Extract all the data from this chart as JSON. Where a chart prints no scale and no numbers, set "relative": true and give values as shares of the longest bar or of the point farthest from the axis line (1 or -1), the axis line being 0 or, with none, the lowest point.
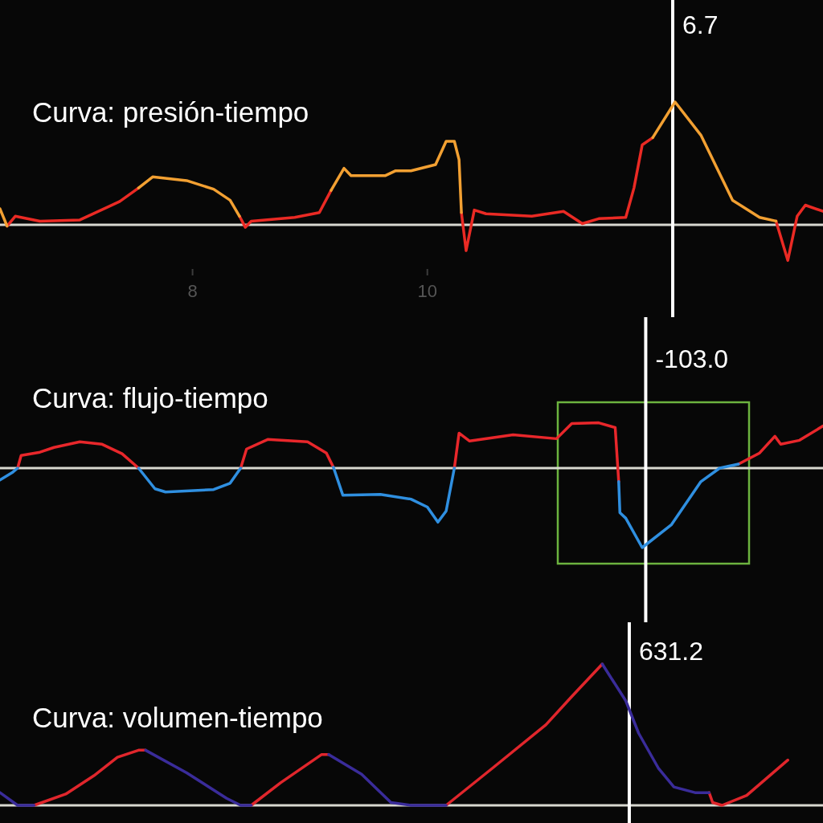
{
  "chart_data": [
    {
      "type": "line",
      "title": "Curva: presión-tiempo",
      "relative": true,
      "xlim": [
        6.36,
        13.37
      ],
      "xticks": [
        8,
        10
      ],
      "x": [
        6.36,
        6.42,
        6.49,
        6.7,
        7.04,
        7.38,
        7.54,
        7.66,
        7.95,
        8.18,
        8.32,
        8.4,
        8.45,
        8.5,
        8.87,
        9.08,
        9.18,
        9.29,
        9.35,
        9.64,
        9.73,
        9.86,
        10.07,
        10.16,
        10.23,
        10.27,
        10.29,
        10.33,
        10.4,
        10.5,
        10.89,
        11.16,
        11.32,
        11.46,
        11.69,
        11.76,
        11.83,
        11.92,
        12.11,
        12.33,
        12.6,
        12.83,
        12.97,
        13.07,
        13.15,
        13.22,
        13.37
      ],
      "series": [
        {
          "color": "#ea2a24",
          "values": [
            null,
            -0.01,
            0.07,
            0.03,
            0.04,
            0.19,
            0.3,
            null,
            null,
            null,
            null,
            0.07,
            -0.02,
            0.03,
            0.06,
            0.1,
            0.28,
            null,
            null,
            null,
            null,
            null,
            null,
            null,
            null,
            null,
            0.1,
            -0.21,
            0.12,
            0.09,
            0.07,
            0.11,
            0.01,
            0.05,
            0.06,
            0.3,
            0.65,
            0.71,
            null,
            null,
            null,
            null,
            0.03,
            -0.29,
            0.07,
            0.16,
            0.11
          ]
        },
        {
          "color": "#f2a032",
          "values": [
            0.13,
            -0.01,
            null,
            null,
            null,
            null,
            0.3,
            0.39,
            0.36,
            0.29,
            0.2,
            0.07,
            null,
            null,
            null,
            null,
            0.28,
            0.46,
            0.4,
            0.4,
            0.44,
            0.44,
            0.49,
            0.68,
            0.68,
            0.53,
            0.1,
            null,
            null,
            null,
            null,
            null,
            null,
            null,
            null,
            null,
            null,
            0.71,
            1.0,
            0.73,
            0.2,
            0.06,
            0.03,
            null,
            null,
            null,
            null
          ]
        }
      ],
      "ref_lines": [
        {
          "axis": "x",
          "value": 12.09,
          "color": "#ffffff"
        }
      ],
      "annotations": [
        "6.7"
      ]
    },
    {
      "type": "line",
      "title": "Curva: flujo-tiempo",
      "relative": true,
      "xlim": [
        6.36,
        13.37
      ],
      "x": [
        6.36,
        6.47,
        6.51,
        6.54,
        6.7,
        6.82,
        7.04,
        7.23,
        7.4,
        7.54,
        7.68,
        7.77,
        8.18,
        8.32,
        8.41,
        8.46,
        8.64,
        8.98,
        9.14,
        9.2,
        9.28,
        9.6,
        9.86,
        10.0,
        10.09,
        10.16,
        10.23,
        10.27,
        10.36,
        10.73,
        11.1,
        11.23,
        11.46,
        11.6,
        11.63,
        11.64,
        11.69,
        11.83,
        12.08,
        12.33,
        12.49,
        12.65,
        12.83,
        12.96,
        13.01,
        13.17,
        13.37
      ],
      "series": [
        {
          "color": "#e8272b",
          "values": [
            null,
            null,
            0.0,
            0.16,
            0.2,
            0.26,
            0.33,
            0.3,
            0.18,
            0.0,
            null,
            null,
            null,
            null,
            0.0,
            0.24,
            0.36,
            0.33,
            0.19,
            0.01,
            null,
            null,
            null,
            null,
            null,
            null,
            0.0,
            0.44,
            0.34,
            0.42,
            0.37,
            0.56,
            0.57,
            0.51,
            -0.17,
            null,
            null,
            null,
            null,
            null,
            null,
            0.05,
            0.19,
            0.4,
            0.3,
            0.35,
            0.53
          ]
        },
        {
          "color": "#2f8fe0",
          "values": [
            -0.15,
            -0.05,
            0.0,
            null,
            null,
            null,
            null,
            null,
            null,
            0.0,
            -0.26,
            -0.3,
            -0.27,
            -0.19,
            0.0,
            null,
            null,
            null,
            null,
            0.01,
            -0.34,
            -0.33,
            -0.39,
            -0.49,
            -0.68,
            -0.54,
            0.0,
            null,
            null,
            null,
            null,
            null,
            null,
            null,
            -0.17,
            -0.56,
            -0.63,
            -1.0,
            -0.71,
            -0.17,
            0.0,
            0.05,
            null,
            null,
            null,
            null,
            null
          ]
        }
      ],
      "ref_lines": [
        {
          "axis": "x",
          "value": 11.86,
          "color": "#ffffff"
        }
      ],
      "annotations": [
        "-103.0"
      ]
    },
    {
      "type": "line",
      "title": "Curva: volumen-tiempo",
      "relative": true,
      "xlim": [
        6.36,
        13.37
      ],
      "x": [
        6.36,
        6.51,
        6.65,
        6.92,
        7.16,
        7.36,
        7.54,
        7.6,
        7.95,
        8.29,
        8.41,
        8.5,
        8.75,
        9.1,
        9.16,
        9.44,
        9.69,
        9.86,
        10.16,
        10.55,
        11.01,
        11.23,
        11.49,
        11.69,
        11.8,
        11.97,
        12.1,
        12.28,
        12.4,
        12.43,
        12.51,
        12.72,
        13.07
      ],
      "series": [
        {
          "color": "#e0262c",
          "values": [
            null,
            null,
            0.0,
            0.08,
            0.21,
            0.34,
            0.39,
            0.39,
            null,
            null,
            null,
            0.0,
            0.16,
            0.36,
            0.36,
            null,
            null,
            null,
            0.0,
            0.26,
            0.57,
            0.77,
            1.0,
            null,
            null,
            null,
            null,
            null,
            0.09,
            0.02,
            0.0,
            0.07,
            0.32
          ]
        },
        {
          "color": "#3a2c9a",
          "values": [
            0.09,
            0.0,
            0.0,
            null,
            null,
            null,
            null,
            0.39,
            0.23,
            0.05,
            0.0,
            0.0,
            null,
            null,
            0.36,
            0.22,
            0.02,
            0.0,
            0.0,
            null,
            null,
            null,
            1.0,
            0.74,
            0.51,
            0.26,
            0.13,
            0.09,
            0.09,
            null,
            null,
            null,
            null
          ]
        }
      ],
      "ref_lines": [
        {
          "axis": "x",
          "value": 11.72,
          "color": "#ffffff"
        }
      ],
      "annotations": [
        "631.2"
      ]
    }
  ]
}
